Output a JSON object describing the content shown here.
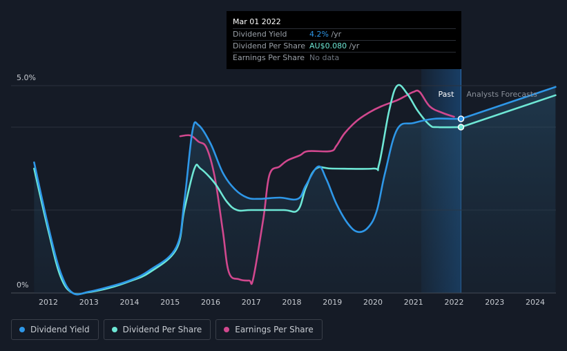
{
  "chart_data": {
    "type": "line",
    "x_ticks": [
      "2012",
      "2013",
      "2014",
      "2015",
      "2016",
      "2017",
      "2018",
      "2019",
      "2020",
      "2021",
      "2022",
      "2023",
      "2024"
    ],
    "xlim": [
      2011.6,
      2024.5
    ],
    "y_ticks": [
      "5.0%",
      "0%"
    ],
    "ylim": [
      0,
      5.0
    ],
    "y_unit": "%",
    "past_forecast_split": 2022.17,
    "past_label": "Past",
    "forecast_label": "Analysts Forecasts",
    "series": [
      {
        "name": "Dividend Yield",
        "color": "#2e97e8",
        "values": [
          [
            2011.65,
            3.15
          ],
          [
            2012.0,
            1.6
          ],
          [
            2012.3,
            0.5
          ],
          [
            2012.6,
            0.0
          ],
          [
            2013.0,
            0.03
          ],
          [
            2013.5,
            0.15
          ],
          [
            2014.0,
            0.3
          ],
          [
            2014.5,
            0.55
          ],
          [
            2015.15,
            1.1
          ],
          [
            2015.35,
            2.2
          ],
          [
            2015.55,
            3.9
          ],
          [
            2015.7,
            4.05
          ],
          [
            2016.0,
            3.6
          ],
          [
            2016.3,
            2.9
          ],
          [
            2016.6,
            2.5
          ],
          [
            2016.9,
            2.3
          ],
          [
            2017.2,
            2.27
          ],
          [
            2017.7,
            2.3
          ],
          [
            2018.15,
            2.27
          ],
          [
            2018.35,
            2.6
          ],
          [
            2018.65,
            3.05
          ],
          [
            2018.85,
            2.75
          ],
          [
            2019.1,
            2.15
          ],
          [
            2019.4,
            1.65
          ],
          [
            2019.65,
            1.47
          ],
          [
            2019.9,
            1.6
          ],
          [
            2020.1,
            2.0
          ],
          [
            2020.3,
            2.9
          ],
          [
            2020.6,
            3.95
          ],
          [
            2021.0,
            4.1
          ],
          [
            2021.5,
            4.2
          ],
          [
            2022.0,
            4.2
          ],
          [
            2022.17,
            4.2
          ]
        ]
      },
      {
        "name": "Dividend Per Share",
        "color": "#6ee7d5",
        "values": [
          [
            2011.65,
            3.0
          ],
          [
            2012.0,
            1.5
          ],
          [
            2012.3,
            0.4
          ],
          [
            2012.6,
            0.0
          ],
          [
            2013.0,
            0.02
          ],
          [
            2013.5,
            0.12
          ],
          [
            2014.0,
            0.28
          ],
          [
            2014.5,
            0.5
          ],
          [
            2015.15,
            1.05
          ],
          [
            2015.35,
            2.0
          ],
          [
            2015.6,
            3.0
          ],
          [
            2015.75,
            3.0
          ],
          [
            2016.1,
            2.65
          ],
          [
            2016.4,
            2.2
          ],
          [
            2016.65,
            2.0
          ],
          [
            2017.0,
            2.0
          ],
          [
            2017.8,
            2.0
          ],
          [
            2018.15,
            2.0
          ],
          [
            2018.35,
            2.55
          ],
          [
            2018.6,
            3.0
          ],
          [
            2019.0,
            3.0
          ],
          [
            2020.0,
            3.0
          ],
          [
            2020.15,
            3.1
          ],
          [
            2020.4,
            4.4
          ],
          [
            2020.6,
            5.0
          ],
          [
            2020.85,
            4.8
          ],
          [
            2021.1,
            4.4
          ],
          [
            2021.4,
            4.05
          ],
          [
            2021.6,
            4.0
          ],
          [
            2022.17,
            4.0
          ]
        ]
      },
      {
        "name": "Earnings Per Share",
        "color": "#d1488e",
        "values": [
          [
            2015.25,
            3.78
          ],
          [
            2015.5,
            3.8
          ],
          [
            2015.7,
            3.65
          ],
          [
            2015.9,
            3.5
          ],
          [
            2016.1,
            2.8
          ],
          [
            2016.3,
            1.5
          ],
          [
            2016.45,
            0.5
          ],
          [
            2016.7,
            0.33
          ],
          [
            2016.95,
            0.3
          ],
          [
            2017.05,
            0.35
          ],
          [
            2017.3,
            1.8
          ],
          [
            2017.45,
            2.85
          ],
          [
            2017.7,
            3.05
          ],
          [
            2017.9,
            3.2
          ],
          [
            2018.2,
            3.32
          ],
          [
            2018.4,
            3.42
          ],
          [
            2018.95,
            3.42
          ],
          [
            2019.1,
            3.55
          ],
          [
            2019.3,
            3.85
          ],
          [
            2019.6,
            4.15
          ],
          [
            2019.9,
            4.35
          ],
          [
            2020.2,
            4.5
          ],
          [
            2020.6,
            4.65
          ],
          [
            2020.8,
            4.75
          ],
          [
            2021.0,
            4.85
          ],
          [
            2021.15,
            4.85
          ],
          [
            2021.4,
            4.5
          ],
          [
            2021.7,
            4.35
          ],
          [
            2022.0,
            4.25
          ]
        ]
      }
    ],
    "forecasts": [
      {
        "name": "Dividend Yield",
        "color": "#2e97e8",
        "values": [
          [
            2022.17,
            4.2
          ],
          [
            2024.5,
            4.97
          ]
        ]
      },
      {
        "name": "Dividend Per Share",
        "color": "#6ee7d5",
        "values": [
          [
            2022.17,
            4.0
          ],
          [
            2024.5,
            4.77
          ]
        ]
      }
    ],
    "markers": [
      {
        "series": "Dividend Yield",
        "x": 2022.17,
        "y": 4.2
      },
      {
        "series": "Dividend Per Share",
        "x": 2022.17,
        "y": 4.0
      }
    ]
  },
  "tooltip": {
    "date": "Mar 01 2022",
    "rows": [
      {
        "label": "Dividend Yield",
        "value": "4.2%",
        "unit": " /yr",
        "color": "#2e97e8"
      },
      {
        "label": "Dividend Per Share",
        "value": "AU$0.080",
        "unit": " /yr",
        "color": "#6ee7d5"
      },
      {
        "label": "Earnings Per Share",
        "value": "No data",
        "unit": "",
        "color": "#6f7680"
      }
    ]
  },
  "legend": [
    {
      "label": "Dividend Yield",
      "color": "#2e97e8"
    },
    {
      "label": "Dividend Per Share",
      "color": "#6ee7d5"
    },
    {
      "label": "Earnings Per Share",
      "color": "#d1488e"
    }
  ]
}
